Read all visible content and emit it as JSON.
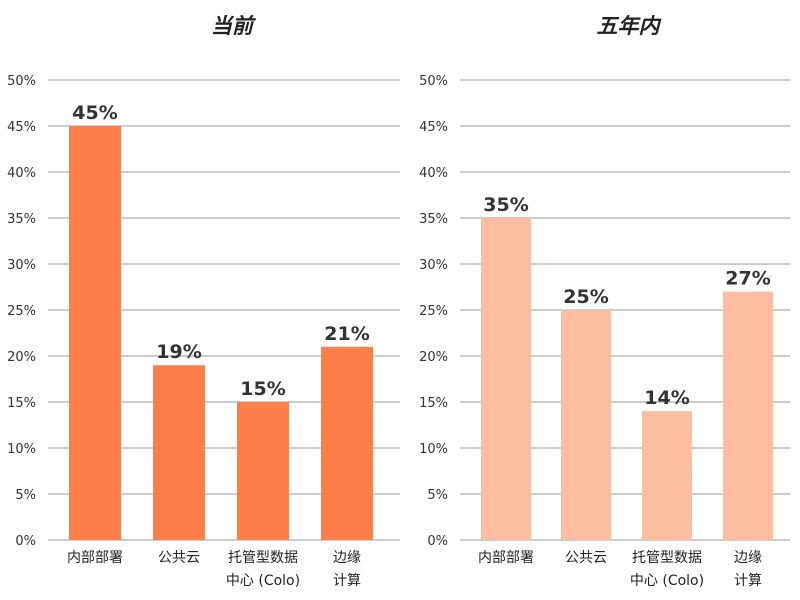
{
  "chart_data": [
    {
      "type": "bar",
      "title": "当前",
      "categories": [
        [
          "内部部署"
        ],
        [
          "公共云"
        ],
        [
          "托管型数据",
          "中心 (Colo)"
        ],
        [
          "边缘",
          "计算"
        ]
      ],
      "values": [
        45,
        19,
        15,
        21
      ],
      "data_labels": [
        "45%",
        "19%",
        "15%",
        "21%"
      ],
      "ylim": [
        0,
        50
      ],
      "yticks": [
        "0%",
        "5%",
        "10%",
        "15%",
        "20%",
        "25%",
        "30%",
        "35%",
        "40%",
        "45%",
        "50%"
      ],
      "grid": true,
      "color": "#FF7F4A"
    },
    {
      "type": "bar",
      "title": "五年内",
      "categories": [
        [
          "内部部署"
        ],
        [
          "公共云"
        ],
        [
          "托管型数据",
          "中心 (Colo)"
        ],
        [
          "边缘",
          "计算"
        ]
      ],
      "values": [
        35,
        25,
        14,
        27
      ],
      "data_labels": [
        "35%",
        "25%",
        "14%",
        "27%"
      ],
      "ylim": [
        0,
        50
      ],
      "yticks": [
        "0%",
        "5%",
        "10%",
        "15%",
        "20%",
        "25%",
        "30%",
        "35%",
        "40%",
        "45%",
        "50%"
      ],
      "grid": true,
      "color": "#FFBEA0"
    }
  ]
}
